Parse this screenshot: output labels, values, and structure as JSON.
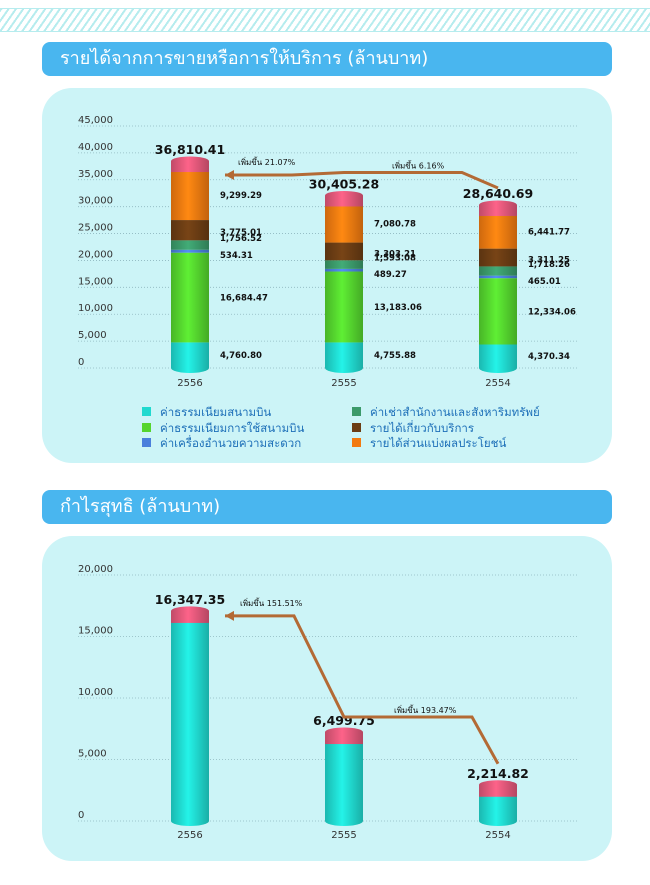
{
  "sections": [
    {
      "title": "รายได้จากการขายหรือการให้บริการ (ล้านบาท)"
    },
    {
      "title": "กำไรสุทธิ (ล้านบาท)"
    }
  ],
  "colors": {
    "header": "#49b6ef",
    "panel": "#ccf4f7",
    "arrow": "#b36a35",
    "cap": "#e2587a"
  },
  "legend": [
    {
      "label": "ค่าธรรมเนียมสนามบิน",
      "color": "#20d9cf"
    },
    {
      "label": "ค่าธรรมเนียมการใช้สนามบิน",
      "color": "#55d52e"
    },
    {
      "label": "ค่าเครื่องอำนวยความสะดวก",
      "color": "#4a7fdc"
    },
    {
      "label": "ค่าเช่าสำนักงานและสังหาริมทรัพย์",
      "color": "#3b9a6a"
    },
    {
      "label": "รายได้เกี่ยวกับบริการ",
      "color": "#6b3d14"
    },
    {
      "label": "รายได้ส่วนแบ่งผลประโยชน์",
      "color": "#f27a10"
    }
  ],
  "chart_data": [
    {
      "type": "bar",
      "stacked": true,
      "categories": [
        "2556",
        "2555",
        "2554"
      ],
      "ylim": [
        0,
        45000
      ],
      "yticks": [
        "0",
        "5,000",
        "10,000",
        "15,000",
        "20,000",
        "25,000",
        "30,000",
        "35,000",
        "40,000",
        "45,000"
      ],
      "grid": true,
      "series": [
        {
          "name": "ค่าธรรมเนียมสนามบิน",
          "values": [
            4760.8,
            4755.88,
            4370.34
          ],
          "labels": [
            "4,760.80",
            "4,755.88",
            "4,370.34"
          ]
        },
        {
          "name": "ค่าธรรมเนียมการใช้สนามบิน",
          "values": [
            16684.47,
            13183.06,
            12334.06
          ],
          "labels": [
            "16,684.47",
            "13,183.06",
            "12,334.06"
          ]
        },
        {
          "name": "ค่าเครื่องอำนวยความสะดวก",
          "values": [
            534.31,
            489.27,
            465.01
          ],
          "labels": [
            "534.31",
            "489.27",
            "465.01"
          ]
        },
        {
          "name": "ค่าเช่าสำนักงานและสังหาริมทรัพย์",
          "values": [
            1756.52,
            1593.08,
            1718.26
          ],
          "labels": [
            "1,756.52",
            "1,593.08",
            "1,718.26"
          ]
        },
        {
          "name": "รายได้เกี่ยวกับบริการ",
          "values": [
            3775.01,
            3303.21,
            3311.25
          ],
          "labels": [
            "3,775.01",
            "3,303.21",
            "3,311.25"
          ]
        },
        {
          "name": "รายได้ส่วนแบ่งผลประโยชน์",
          "values": [
            9299.29,
            7080.78,
            6441.77
          ],
          "labels": [
            "9,299.29",
            "7,080.78",
            "6,441.77"
          ]
        }
      ],
      "totals": [
        36810.41,
        30405.28,
        28640.69
      ],
      "total_labels": [
        "36,810.41",
        "30,405.28",
        "28,640.69"
      ],
      "annotations": [
        "เพิ่มขึ้น 21.07%",
        "เพิ่มขึ้น 6.16%"
      ]
    },
    {
      "type": "bar",
      "categories": [
        "2556",
        "2555",
        "2554"
      ],
      "ylim": [
        0,
        20000
      ],
      "yticks": [
        "0",
        "5,000",
        "10,000",
        "15,000",
        "20,000"
      ],
      "grid": true,
      "values": [
        16347.35,
        6499.75,
        2214.82
      ],
      "total_labels": [
        "16,347.35",
        "6,499.75",
        "2,214.82"
      ],
      "annotations": [
        "เพิ่มขึ้น 151.51%",
        "เพิ่มขึ้น 193.47%"
      ]
    }
  ]
}
